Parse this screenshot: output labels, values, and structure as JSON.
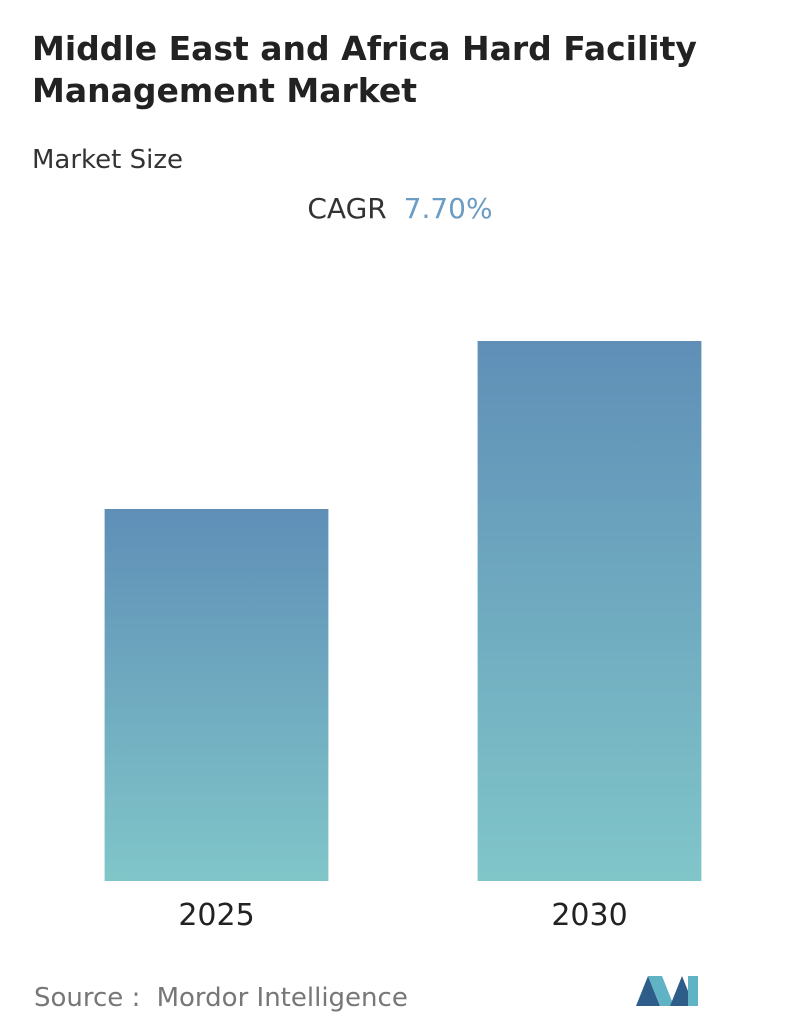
{
  "chart_data": {
    "type": "bar",
    "title": "Middle East and Africa Hard Facility Management Market",
    "subtitle": "Market Size",
    "cagr_label": "CAGR",
    "cagr_value": "7.70%",
    "categories": [
      "2025",
      "2030"
    ],
    "values": [
      37.2,
      54.0
    ],
    "gradient": [
      "#5f8fb7",
      "#80c6c9"
    ],
    "ylim": [
      0,
      60
    ],
    "source_label": "Source :",
    "source": "Mordor Intelligence"
  }
}
